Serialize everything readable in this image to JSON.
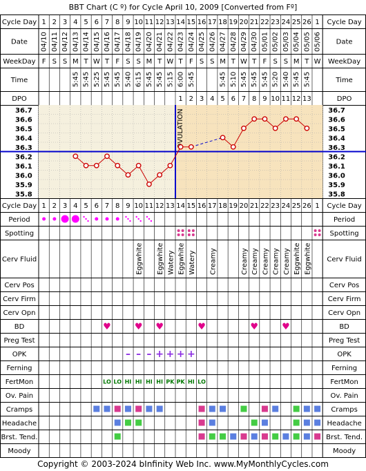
{
  "title": "BBT Chart (C º) for Cycle April 10, 2009  [Converted from Fº]",
  "copyright": "Copyright © 2003-2024 bInfinity Web Inc.     www.MyMonthlyCycles.com",
  "ovulation_label": "OVULATION",
  "row_labels": {
    "cycle_day": "Cycle Day",
    "date": "Date",
    "weekday": "WeekDay",
    "time": "Time",
    "dpo": "DPO",
    "period": "Period",
    "spotting": "Spotting",
    "cerv_fluid": "Cerv Fluid",
    "cerv_pos": "Cerv Pos",
    "cerv_firm": "Cerv Firm",
    "cerv_opn": "Cerv Opn",
    "bd": "BD",
    "preg_test": "Preg Test",
    "opk": "OPK",
    "ferning": "Ferning",
    "fertmon": "FertMon",
    "ov_pain": "Ov. Pain",
    "cramps": "Cramps",
    "headache": "Headache",
    "brst_tend": "Brst. Tend.",
    "moody": "Moody"
  },
  "days": [
    "1",
    "2",
    "3",
    "4",
    "5",
    "6",
    "7",
    "8",
    "9",
    "10",
    "11",
    "12",
    "13",
    "14",
    "15",
    "16",
    "17",
    "18",
    "19",
    "20",
    "21",
    "22",
    "23",
    "24",
    "25",
    "26",
    "1"
  ],
  "dates": [
    "04/10",
    "04/11",
    "04/12",
    "04/13",
    "04/14",
    "04/15",
    "04/16",
    "04/17",
    "04/18",
    "04/19",
    "04/20",
    "04/21",
    "04/22",
    "04/23",
    "04/24",
    "04/25",
    "04/26",
    "04/27",
    "04/28",
    "04/29",
    "04/30",
    "05/01",
    "05/02",
    "05/03",
    "05/04",
    "05/05",
    "05/06"
  ],
  "weekdays": [
    "F",
    "S",
    "S",
    "M",
    "T",
    "W",
    "T",
    "F",
    "S",
    "S",
    "M",
    "T",
    "W",
    "T",
    "F",
    "S",
    "S",
    "M",
    "T",
    "W",
    "T",
    "F",
    "S",
    "S",
    "M",
    "T",
    "W"
  ],
  "times": [
    "",
    "",
    "",
    "5:45",
    "5:45",
    "5:25",
    "5:45",
    "5:45",
    "5:40",
    "6:15",
    "5:45",
    "5:45",
    "5:15",
    "6:00",
    "5:45",
    "",
    "",
    "5:45",
    "5:10",
    "5:45",
    "5:45",
    "5:45",
    "5:20",
    "5:40",
    "5:45",
    "5:45",
    ""
  ],
  "dpo": [
    "",
    "",
    "",
    "",
    "",
    "",
    "",
    "",
    "",
    "",
    "",
    "",
    "",
    "1",
    "2",
    "3",
    "4",
    "5",
    "6",
    "7",
    "8",
    "9",
    "10",
    "11",
    "12",
    "13",
    ""
  ],
  "period": [
    "dot",
    "dot",
    "big",
    "big",
    "spot",
    "dot",
    "dot",
    "dot",
    "spot",
    "spot",
    "spot",
    "",
    "",
    "",
    "",
    "",
    "",
    "",
    "",
    "",
    "",
    "",
    "",
    "",
    "",
    "",
    ""
  ],
  "spotting": [
    "",
    "",
    "",
    "",
    "",
    "",
    "",
    "",
    "",
    "",
    "",
    "",
    "",
    "spot",
    "spot",
    "",
    "",
    "",
    "",
    "",
    "",
    "",
    "",
    "",
    "",
    "",
    "spot"
  ],
  "cerv_fluid": [
    "",
    "",
    "",
    "",
    "",
    "",
    "",
    "",
    "",
    "Eggwhite",
    "",
    "Eggwhite",
    "Watery",
    "Eggwhite",
    "Watery",
    "",
    "Creamy",
    "",
    "",
    "Creamy",
    "Creamy",
    "Creamy",
    "Creamy",
    "Creamy",
    "Eggwhite",
    "Eggwhite",
    ""
  ],
  "bd": [
    "",
    "",
    "",
    "",
    "",
    "",
    "heart",
    "",
    "",
    "heart",
    "",
    "heart",
    "",
    "",
    "",
    "heart",
    "",
    "",
    "",
    "",
    "heart",
    "",
    "",
    "heart",
    "",
    "",
    ""
  ],
  "opk": [
    "",
    "",
    "",
    "",
    "",
    "",
    "",
    "",
    "minus",
    "minus",
    "minus",
    "plus",
    "plus",
    "plus",
    "plus",
    "",
    "",
    "",
    "",
    "",
    "",
    "",
    "",
    "",
    "",
    "",
    ""
  ],
  "fertmon": [
    "",
    "",
    "",
    "",
    "",
    "",
    "LO",
    "LO",
    "HI",
    "HI",
    "HI",
    "HI",
    "PK",
    "PK",
    "HI",
    "LO",
    "",
    "",
    "",
    "",
    "",
    "",
    "",
    "",
    "",
    "",
    ""
  ],
  "cramps": [
    "",
    "",
    "",
    "",
    "",
    "b",
    "b",
    "p",
    "b",
    "p",
    "b",
    "b",
    "",
    "",
    "",
    "p",
    "b",
    "b",
    "",
    "g",
    "",
    "p",
    "b",
    "",
    "g",
    "b",
    "b"
  ],
  "headache": [
    "",
    "",
    "",
    "",
    "",
    "",
    "",
    "b",
    "g",
    "g",
    "",
    "",
    "",
    "",
    "",
    "p",
    "b",
    "",
    "",
    "",
    "g",
    "b",
    "",
    "",
    "g",
    "b",
    "b"
  ],
  "brst_tend": [
    "",
    "",
    "",
    "",
    "",
    "",
    "",
    "g",
    "",
    "",
    "",
    "",
    "",
    "",
    "",
    "p",
    "g",
    "g",
    "b",
    "p",
    "b",
    "p",
    "g",
    "b",
    "g",
    "b",
    "p"
  ],
  "colors": {
    "grid": "#000000",
    "plot_bg_pre": "#f5f0de",
    "plot_bg_post": "#f7e3bd",
    "temp_line": "#cc0000",
    "coverline": "#0000cc",
    "ovulation_line": "#0000cc",
    "period": "#ff00ff",
    "heart": "#e0008a",
    "opk": "#8a2be2",
    "fertmon": "#007700",
    "box_blue": "#5b7fe0",
    "box_pink": "#d83a8f",
    "box_green": "#44cc44",
    "spotting": "#d83a8f"
  },
  "chart_data": {
    "type": "line",
    "title": "BBT Chart (C º) for Cycle April 10, 2009  [Converted from Fº]",
    "xlabel": "Cycle Day",
    "ylabel": "",
    "ylim": [
      35.8,
      36.7
    ],
    "y_ticks": [
      "36.7",
      "36.6",
      "36.5",
      "36.4",
      "36.3",
      "36.2",
      "36.1",
      "36.0",
      "35.9",
      "35.8"
    ],
    "x": [
      4,
      5,
      6,
      7,
      8,
      9,
      10,
      11,
      12,
      13,
      14,
      15,
      18,
      19,
      20,
      21,
      22,
      23,
      24,
      25,
      26
    ],
    "values": [
      36.2,
      36.1,
      36.1,
      36.2,
      36.1,
      36.0,
      36.1,
      35.9,
      36.0,
      36.1,
      36.3,
      36.3,
      36.4,
      36.3,
      36.5,
      36.6,
      36.6,
      36.5,
      36.6,
      36.6,
      36.5
    ],
    "dashed_segment": [
      15,
      18
    ],
    "coverline": 36.25,
    "ovulation_day": 13,
    "grid": true
  }
}
